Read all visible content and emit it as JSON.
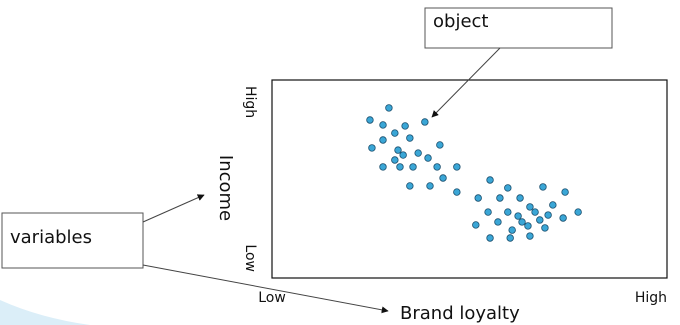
{
  "chart_data": {
    "type": "scatter",
    "xlabel": "Brand loyalty",
    "ylabel": "Income",
    "xlim": [
      0,
      100
    ],
    "ylim": [
      0,
      100
    ],
    "xticks": [
      {
        "value": 0,
        "label": "Low"
      },
      {
        "value": 100,
        "label": "High"
      }
    ],
    "yticks": [
      {
        "value": 0,
        "label": "Low"
      },
      {
        "value": 100,
        "label": "High"
      }
    ],
    "color": "#3aa6d6",
    "annotations": [
      "object",
      "variables"
    ],
    "x": [
      29.6,
      24.8,
      28.1,
      33.7,
      38.7,
      31.1,
      28.1,
      34.9,
      25.3,
      31.9,
      37,
      42.5,
      39.5,
      31.1,
      33.2,
      28.1,
      32.4,
      35.7,
      41.8,
      46.8,
      40,
      34.9,
      43.3,
      46.8,
      55.2,
      59.7,
      68.6,
      74.2,
      52.2,
      57.7,
      62.8,
      65.3,
      71.1,
      54.7,
      59.7,
      62.3,
      66.6,
      69.9,
      77.5,
      73.7,
      57.2,
      63.3,
      67.8,
      51.6,
      64.8,
      60.8,
      69.1,
      55.2,
      60.3,
      65.3
    ],
    "y": [
      85.9,
      79.8,
      77.3,
      76.8,
      78.8,
      73.2,
      69.7,
      70.7,
      65.7,
      64.6,
      63.1,
      67.2,
      60.6,
      59.6,
      62.1,
      56.1,
      56.1,
      56.1,
      56.1,
      56.1,
      46.5,
      46.5,
      50.5,
      43.4,
      49.5,
      45.5,
      46,
      43.4,
      40.4,
      40.4,
      40.4,
      35.9,
      36.9,
      33.3,
      33.3,
      31.3,
      33.3,
      31.8,
      33.3,
      30.3,
      28.3,
      28.3,
      29.3,
      26.8,
      26.3,
      24.2,
      25.3,
      20.2,
      20.2,
      21.2
    ]
  }
}
